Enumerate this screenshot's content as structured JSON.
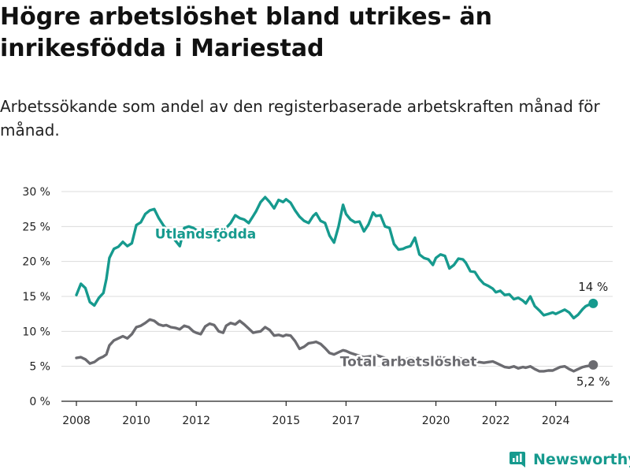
{
  "header": {
    "title": "Högre arbetslöshet bland utrikes- än inrikesfödda i Mariestad",
    "subtitle": "Arbetssökande som andel av den registerbaserade arbetskraften månad för månad."
  },
  "brand": {
    "name": "Newsworthy",
    "icon": "bar-chart-logo-icon"
  },
  "colors": {
    "series_foreign": "#169a8e",
    "series_total": "#6b6b70",
    "grid": "#dcdcdc",
    "axis": "#222222",
    "background": "#ffffff"
  },
  "chart_data": {
    "type": "line",
    "title": "Högre arbetslöshet bland utrikes- än inrikesfödda i Mariestad",
    "subtitle": "Arbetssökande som andel av den registerbaserade arbetskraften månad för månad.",
    "xlabel": "",
    "ylabel": "",
    "xlim": [
      2007.5,
      2025.9
    ],
    "ylim": [
      0,
      30
    ],
    "yticks": [
      0,
      5,
      10,
      15,
      20,
      25,
      30
    ],
    "ytick_labels": [
      "0 %",
      "5 %",
      "10 %",
      "15 %",
      "20 %",
      "25 %",
      "30 %"
    ],
    "xticks": [
      2008,
      2010,
      2012,
      2015,
      2017,
      2020,
      2022,
      2024
    ],
    "xtick_labels": [
      "2008",
      "2010",
      "2012",
      "2015",
      "2017",
      "2020",
      "2022",
      "2024"
    ],
    "grid": true,
    "legend": "none",
    "series": [
      {
        "name": "Utlandsfödda",
        "color": "#169a8e",
        "last_label": "14 %",
        "points": [
          [
            2008.0,
            15.2
          ],
          [
            2008.15,
            16.8
          ],
          [
            2008.3,
            16.2
          ],
          [
            2008.45,
            14.2
          ],
          [
            2008.6,
            13.7
          ],
          [
            2008.75,
            14.8
          ],
          [
            2008.9,
            15.5
          ],
          [
            2009.0,
            17.5
          ],
          [
            2009.1,
            20.5
          ],
          [
            2009.25,
            21.8
          ],
          [
            2009.4,
            22.1
          ],
          [
            2009.55,
            22.8
          ],
          [
            2009.7,
            22.2
          ],
          [
            2009.85,
            22.6
          ],
          [
            2010.0,
            25.2
          ],
          [
            2010.15,
            25.6
          ],
          [
            2010.3,
            26.8
          ],
          [
            2010.45,
            27.3
          ],
          [
            2010.6,
            27.5
          ],
          [
            2010.75,
            26.2
          ],
          [
            2010.9,
            25.2
          ],
          [
            2011.0,
            24.6
          ],
          [
            2011.15,
            23.9
          ],
          [
            2011.3,
            23.0
          ],
          [
            2011.45,
            22.2
          ],
          [
            2011.6,
            24.8
          ],
          [
            2011.75,
            25.0
          ],
          [
            2011.9,
            24.8
          ],
          [
            2012.0,
            24.5
          ],
          [
            2012.15,
            24.0
          ],
          [
            2012.3,
            24.2
          ],
          [
            2012.45,
            24.0
          ],
          [
            2012.6,
            23.4
          ],
          [
            2012.75,
            23.0
          ],
          [
            2012.9,
            23.6
          ],
          [
            2013.0,
            24.8
          ],
          [
            2013.15,
            25.5
          ],
          [
            2013.3,
            26.6
          ],
          [
            2013.45,
            26.2
          ],
          [
            2013.6,
            26.0
          ],
          [
            2013.75,
            25.5
          ],
          [
            2013.9,
            26.5
          ],
          [
            2014.0,
            27.2
          ],
          [
            2014.15,
            28.5
          ],
          [
            2014.3,
            29.2
          ],
          [
            2014.45,
            28.5
          ],
          [
            2014.6,
            27.6
          ],
          [
            2014.75,
            28.8
          ],
          [
            2014.9,
            28.5
          ],
          [
            2015.0,
            28.9
          ],
          [
            2015.15,
            28.4
          ],
          [
            2015.3,
            27.3
          ],
          [
            2015.45,
            26.4
          ],
          [
            2015.6,
            25.8
          ],
          [
            2015.75,
            25.5
          ],
          [
            2015.9,
            26.5
          ],
          [
            2016.0,
            26.9
          ],
          [
            2016.15,
            25.8
          ],
          [
            2016.3,
            25.5
          ],
          [
            2016.45,
            23.7
          ],
          [
            2016.6,
            22.7
          ],
          [
            2016.75,
            25.0
          ],
          [
            2016.9,
            28.1
          ],
          [
            2017.0,
            26.8
          ],
          [
            2017.15,
            26.0
          ],
          [
            2017.3,
            25.6
          ],
          [
            2017.45,
            25.7
          ],
          [
            2017.6,
            24.3
          ],
          [
            2017.75,
            25.3
          ],
          [
            2017.9,
            27.0
          ],
          [
            2018.0,
            26.5
          ],
          [
            2018.15,
            26.6
          ],
          [
            2018.3,
            25.0
          ],
          [
            2018.45,
            24.8
          ],
          [
            2018.6,
            22.5
          ],
          [
            2018.75,
            21.7
          ],
          [
            2018.9,
            21.8
          ],
          [
            2019.0,
            22.0
          ],
          [
            2019.15,
            22.2
          ],
          [
            2019.3,
            23.4
          ],
          [
            2019.45,
            21.0
          ],
          [
            2019.6,
            20.5
          ],
          [
            2019.75,
            20.3
          ],
          [
            2019.9,
            19.5
          ],
          [
            2020.0,
            20.5
          ],
          [
            2020.15,
            21.0
          ],
          [
            2020.3,
            20.8
          ],
          [
            2020.45,
            19.0
          ],
          [
            2020.6,
            19.5
          ],
          [
            2020.75,
            20.4
          ],
          [
            2020.9,
            20.3
          ],
          [
            2021.0,
            19.8
          ],
          [
            2021.15,
            18.6
          ],
          [
            2021.3,
            18.5
          ],
          [
            2021.45,
            17.5
          ],
          [
            2021.6,
            16.8
          ],
          [
            2021.75,
            16.5
          ],
          [
            2021.9,
            16.1
          ],
          [
            2022.0,
            15.6
          ],
          [
            2022.15,
            15.8
          ],
          [
            2022.3,
            15.2
          ],
          [
            2022.45,
            15.3
          ],
          [
            2022.6,
            14.6
          ],
          [
            2022.75,
            14.8
          ],
          [
            2022.9,
            14.4
          ],
          [
            2023.0,
            14.0
          ],
          [
            2023.15,
            15.0
          ],
          [
            2023.3,
            13.6
          ],
          [
            2023.45,
            13.0
          ],
          [
            2023.6,
            12.3
          ],
          [
            2023.75,
            12.5
          ],
          [
            2023.9,
            12.7
          ],
          [
            2024.0,
            12.5
          ],
          [
            2024.15,
            12.8
          ],
          [
            2024.3,
            13.1
          ],
          [
            2024.45,
            12.7
          ],
          [
            2024.6,
            11.9
          ],
          [
            2024.75,
            12.4
          ],
          [
            2024.9,
            13.2
          ],
          [
            2025.0,
            13.6
          ],
          [
            2025.15,
            13.9
          ],
          [
            2025.25,
            14.0
          ]
        ]
      },
      {
        "name": "Total arbetslöshet",
        "color": "#6b6b70",
        "last_label": "5,2 %",
        "points": [
          [
            2008.0,
            6.2
          ],
          [
            2008.15,
            6.3
          ],
          [
            2008.3,
            6.0
          ],
          [
            2008.45,
            5.4
          ],
          [
            2008.6,
            5.6
          ],
          [
            2008.75,
            6.1
          ],
          [
            2008.9,
            6.4
          ],
          [
            2009.0,
            6.7
          ],
          [
            2009.1,
            8.0
          ],
          [
            2009.25,
            8.7
          ],
          [
            2009.4,
            9.0
          ],
          [
            2009.55,
            9.3
          ],
          [
            2009.7,
            9.0
          ],
          [
            2009.85,
            9.6
          ],
          [
            2010.0,
            10.6
          ],
          [
            2010.15,
            10.8
          ],
          [
            2010.3,
            11.2
          ],
          [
            2010.45,
            11.7
          ],
          [
            2010.6,
            11.5
          ],
          [
            2010.75,
            11.0
          ],
          [
            2010.9,
            10.8
          ],
          [
            2011.0,
            10.9
          ],
          [
            2011.15,
            10.6
          ],
          [
            2011.3,
            10.5
          ],
          [
            2011.45,
            10.3
          ],
          [
            2011.6,
            10.8
          ],
          [
            2011.75,
            10.6
          ],
          [
            2011.9,
            10.0
          ],
          [
            2012.0,
            9.8
          ],
          [
            2012.15,
            9.6
          ],
          [
            2012.3,
            10.7
          ],
          [
            2012.45,
            11.1
          ],
          [
            2012.6,
            10.9
          ],
          [
            2012.75,
            10.0
          ],
          [
            2012.9,
            9.8
          ],
          [
            2013.0,
            10.8
          ],
          [
            2013.15,
            11.2
          ],
          [
            2013.3,
            11.0
          ],
          [
            2013.45,
            11.5
          ],
          [
            2013.6,
            11.0
          ],
          [
            2013.75,
            10.4
          ],
          [
            2013.9,
            9.8
          ],
          [
            2014.0,
            9.9
          ],
          [
            2014.15,
            10.0
          ],
          [
            2014.3,
            10.6
          ],
          [
            2014.45,
            10.2
          ],
          [
            2014.6,
            9.4
          ],
          [
            2014.75,
            9.5
          ],
          [
            2014.9,
            9.3
          ],
          [
            2015.0,
            9.5
          ],
          [
            2015.15,
            9.4
          ],
          [
            2015.3,
            8.6
          ],
          [
            2015.45,
            7.5
          ],
          [
            2015.6,
            7.8
          ],
          [
            2015.75,
            8.3
          ],
          [
            2015.9,
            8.4
          ],
          [
            2016.0,
            8.5
          ],
          [
            2016.15,
            8.2
          ],
          [
            2016.3,
            7.6
          ],
          [
            2016.45,
            6.9
          ],
          [
            2016.6,
            6.7
          ],
          [
            2016.75,
            7.0
          ],
          [
            2016.9,
            7.3
          ],
          [
            2017.0,
            7.2
          ],
          [
            2017.15,
            6.9
          ],
          [
            2017.3,
            6.7
          ],
          [
            2017.45,
            6.5
          ],
          [
            2017.6,
            6.3
          ],
          [
            2017.75,
            6.4
          ],
          [
            2017.9,
            6.5
          ],
          [
            2018.0,
            6.6
          ],
          [
            2018.15,
            6.4
          ],
          [
            2018.3,
            6.2
          ],
          [
            2018.45,
            6.0
          ],
          [
            2018.6,
            5.9
          ],
          [
            2018.75,
            5.8
          ],
          [
            2018.9,
            5.9
          ],
          [
            2019.0,
            6.0
          ],
          [
            2019.15,
            6.2
          ],
          [
            2019.3,
            6.1
          ],
          [
            2019.45,
            6.0
          ],
          [
            2019.6,
            5.9
          ],
          [
            2019.75,
            5.8
          ],
          [
            2019.9,
            5.7
          ],
          [
            2020.0,
            6.0
          ],
          [
            2020.15,
            6.3
          ],
          [
            2020.3,
            6.2
          ],
          [
            2020.45,
            6.0
          ],
          [
            2020.6,
            6.1
          ],
          [
            2020.75,
            6.2
          ],
          [
            2020.9,
            6.0
          ],
          [
            2021.0,
            5.9
          ],
          [
            2021.15,
            5.7
          ],
          [
            2021.3,
            5.6
          ],
          [
            2021.45,
            5.6
          ],
          [
            2021.6,
            5.5
          ],
          [
            2021.75,
            5.6
          ],
          [
            2021.9,
            5.7
          ],
          [
            2022.0,
            5.5
          ],
          [
            2022.15,
            5.2
          ],
          [
            2022.3,
            4.9
          ],
          [
            2022.45,
            4.8
          ],
          [
            2022.6,
            5.0
          ],
          [
            2022.75,
            4.7
          ],
          [
            2022.9,
            4.9
          ],
          [
            2023.0,
            4.8
          ],
          [
            2023.15,
            5.0
          ],
          [
            2023.3,
            4.6
          ],
          [
            2023.45,
            4.3
          ],
          [
            2023.6,
            4.3
          ],
          [
            2023.75,
            4.4
          ],
          [
            2023.9,
            4.4
          ],
          [
            2024.0,
            4.6
          ],
          [
            2024.15,
            4.9
          ],
          [
            2024.3,
            5.0
          ],
          [
            2024.45,
            4.6
          ],
          [
            2024.6,
            4.3
          ],
          [
            2024.75,
            4.6
          ],
          [
            2024.9,
            4.9
          ],
          [
            2025.0,
            5.0
          ],
          [
            2025.15,
            5.1
          ],
          [
            2025.25,
            5.2
          ]
        ]
      }
    ]
  }
}
